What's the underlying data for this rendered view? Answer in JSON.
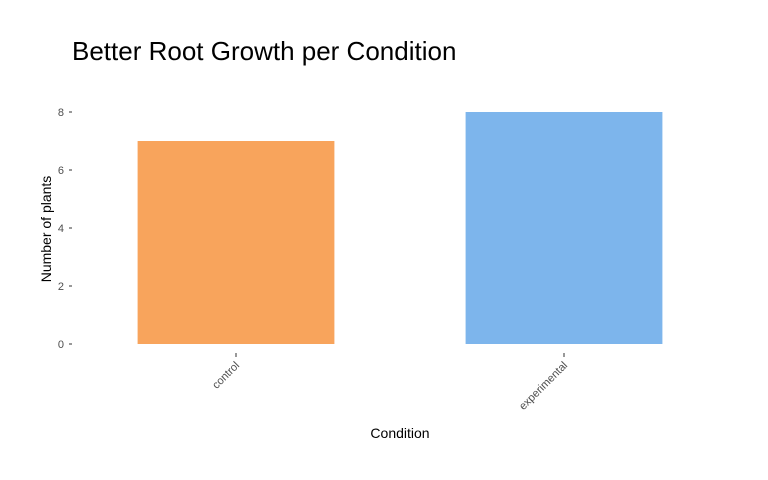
{
  "chart_data": {
    "type": "bar",
    "title": "Better Root Growth per Condition",
    "xlabel": "Condition",
    "ylabel": "Number of plants",
    "categories": [
      "control",
      "experimental"
    ],
    "values": [
      7,
      8
    ],
    "colors": [
      "#F8A45C",
      "#7DB5EC"
    ],
    "ylim": [
      0,
      8
    ],
    "yticks": [
      0,
      2,
      4,
      6,
      8
    ],
    "grid": false,
    "legend": "none"
  }
}
